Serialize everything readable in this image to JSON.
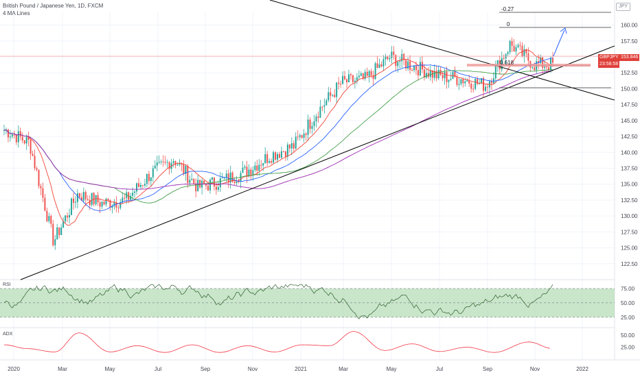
{
  "header": {
    "title": "British Pound / Japanese Yen, 1D, FXCM",
    "indicators": "4 MA Lines",
    "currency": "JPY"
  },
  "price_axis": {
    "ticks": [
      "160.00",
      "157.50",
      "155.00",
      "152.50",
      "150.00",
      "147.50",
      "145.00",
      "142.50",
      "140.00",
      "137.50",
      "135.00",
      "132.50",
      "130.00",
      "127.50",
      "125.00",
      "122.50"
    ]
  },
  "time_axis": {
    "labels": [
      "2020",
      "Mar",
      "May",
      "Jul",
      "Sep",
      "Nov",
      "2021",
      "Mar",
      "May",
      "Jul",
      "Sep",
      "Nov",
      "2022"
    ]
  },
  "badges": {
    "symbol": "GBPJPY",
    "last_price": "153.846",
    "countdown": "23:58:58"
  },
  "fib_labels": {
    "level_neg027": "-0.27",
    "level_0": "0",
    "level_618": "0.618"
  },
  "rsi_pane": {
    "label": "RSI",
    "ticks": [
      "75.00",
      "50.00",
      "25.00"
    ]
  },
  "adx_pane": {
    "label": "ADX",
    "ticks": [
      "50.00",
      "25.00"
    ]
  },
  "colors": {
    "bull": "#26a69a",
    "bear": "#ef5350",
    "ma_red": "#f44336",
    "ma_blue": "#2962ff",
    "ma_green": "#43a047",
    "ma_purple": "#9c27b0",
    "rsi_band": "#a5d6a7",
    "adx": "#f23645",
    "arrow": "#2962ff"
  },
  "chart_data": {
    "type": "line",
    "title": "British Pound / Japanese Yen, 1D, FXCM",
    "x": [
      "2020-01",
      "2020-02",
      "2020-03",
      "2020-04",
      "2020-05",
      "2020-06",
      "2020-07",
      "2020-08",
      "2020-09",
      "2020-10",
      "2020-11",
      "2020-12",
      "2021-01",
      "2021-02",
      "2021-03",
      "2021-04",
      "2021-05",
      "2021-06",
      "2021-07",
      "2021-08",
      "2021-09",
      "2021-10",
      "2021-11"
    ],
    "series": [
      {
        "values": [
          143.5,
          141.5,
          126.0,
          133.5,
          132.0,
          132.5,
          136.5,
          139.0,
          134.5,
          135.5,
          137.0,
          139.5,
          141.0,
          146.5,
          151.0,
          151.5,
          155.0,
          153.5,
          152.0,
          151.5,
          150.5,
          157.0,
          153.8
        ]
      }
    ],
    "ylim": [
      120,
      162
    ],
    "grid": true,
    "legend": "none"
  }
}
